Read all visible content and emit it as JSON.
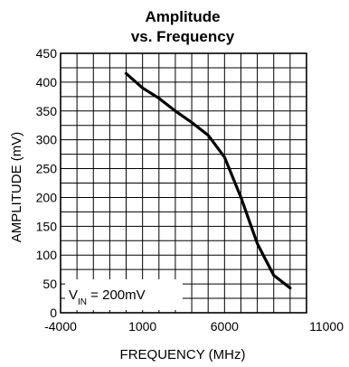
{
  "chart_data": {
    "type": "line",
    "title_line1": "Amplitude",
    "title_line2": "vs. Frequency",
    "xlabel": "FREQUENCY (MHz)",
    "ylabel": "AMPLITUDE (mV)",
    "xlim": [
      -4000,
      11000
    ],
    "ylim": [
      0,
      450
    ],
    "x_grid_step": 1000,
    "y_grid_step": 25,
    "x_tick_labels": [
      -4000,
      1000,
      6000,
      11000
    ],
    "y_tick_labels": [
      0,
      50,
      100,
      150,
      200,
      250,
      300,
      350,
      400,
      450
    ],
    "grid": true,
    "annotation": {
      "prefix": "V",
      "subscript": "IN",
      "suffix": " = 200mV"
    },
    "series": [
      {
        "x": [
          0,
          1000,
          2000,
          3000,
          4000,
          5000,
          6000,
          7000,
          8000,
          9000,
          10000
        ],
        "values": [
          415,
          390,
          372,
          350,
          330,
          308,
          270,
          200,
          120,
          65,
          43
        ]
      }
    ]
  }
}
